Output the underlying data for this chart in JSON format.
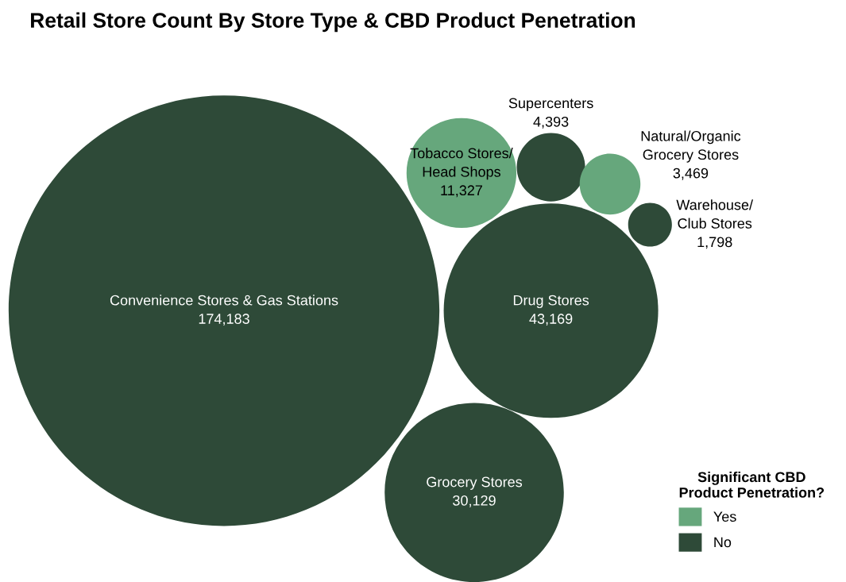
{
  "chart_data": {
    "type": "other",
    "title": "Retail Store Count By Store Type & CBD Product Penetration",
    "legend_title": "Significant CBD\nProduct Penetration?",
    "legend": "bottom right",
    "categories": [
      "Convenience Stores & Gas Stations",
      "Drug Stores",
      "Grocery Stores",
      "Tobacco Stores/\nHead Shops",
      "Supercenters",
      "Natural/Organic\nGrocery Stores",
      "Warehouse/\nClub Stores"
    ],
    "series": [
      {
        "name": "Yes",
        "color": "#66a77c",
        "values": [
          null,
          null,
          null,
          11327,
          null,
          3469,
          null
        ],
        "value_labels": [
          null,
          null,
          null,
          "11,327",
          null,
          "3,469",
          null
        ]
      },
      {
        "name": "No",
        "color": "#2e4a38",
        "values": [
          174183,
          43169,
          30129,
          null,
          4393,
          null,
          1798
        ],
        "value_labels": [
          "174,183",
          "43,169",
          "30,129",
          null,
          "4,393",
          null,
          "1,798"
        ]
      }
    ]
  }
}
